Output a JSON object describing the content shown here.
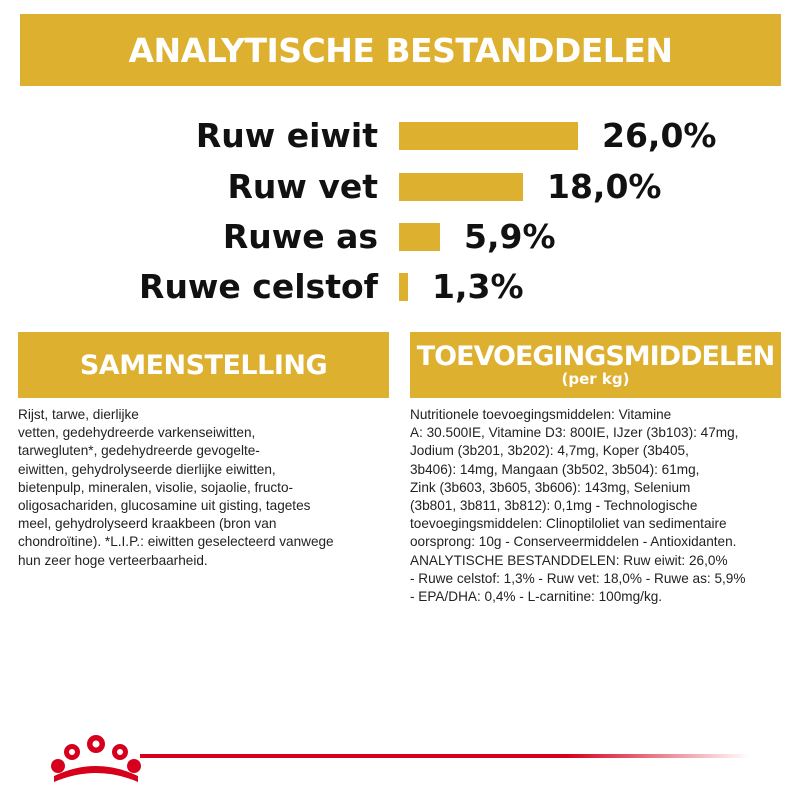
{
  "analytical": {
    "title": "ANALYTISCHE BESTANDDELEN",
    "items": [
      {
        "label": "Ruw eiwit",
        "value": "26,0%",
        "percent": 26.0
      },
      {
        "label": "Ruw vet",
        "value": "18,0%",
        "percent": 18.0
      },
      {
        "label": "Ruwe as",
        "value": "5,9%",
        "percent": 5.9
      },
      {
        "label": "Ruwe celstof",
        "value": "1,3%",
        "percent": 1.3
      }
    ]
  },
  "composition": {
    "title": "SAMENSTELLING",
    "text": "Rijst, tarwe, dierlijke\nvetten, gedehydreerde varkenseiwitten,\ntarwegluten*, gedehydreerde gevogelte-\neiwitten, gehydrolyseerde dierlijke eiwitten,\nbietenpulp, mineralen, visolie, sojaolie, fructo-\noligosachariden, glucosamine uit gisting, tagetes\nmeel, gehydrolyseerd kraakbeen (bron van\nchondroïtine). *L.I.P.: eiwitten geselecteerd vanwege\nhun zeer hoge verteerbaarheid."
  },
  "additives": {
    "title": "TOEVOEGINGSMIDDELEN",
    "subtitle": "(per kg)",
    "text": "Nutritionele toevoegingsmiddelen: Vitamine\nA: 30.500IE, Vitamine D3: 800IE, IJzer (3b103): 47mg,\nJodium (3b201, 3b202): 4,7mg, Koper (3b405,\n3b406): 14mg, Mangaan (3b502, 3b504): 61mg,\nZink (3b603, 3b605, 3b606): 143mg, Selenium\n(3b801, 3b811, 3b812): 0,1mg - Technologische\ntoevoegingsmiddelen: Clinoptiloliet van sedimentaire\noorsprong: 10g - Conserveermiddelen - Antioxidanten.\nANALYTISCHE BESTANDDELEN: Ruw eiwit: 26,0%\n- Ruwe celstof: 1,3% - Ruw vet: 18,0% - Ruwe as: 5,9%\n- EPA/DHA: 0,4% - L-carnitine: 100mg/kg."
  },
  "colors": {
    "accent": "#deb02f",
    "brand_red": "#d6001c"
  },
  "icons": {
    "logo": "royal-canin-crown-icon"
  }
}
